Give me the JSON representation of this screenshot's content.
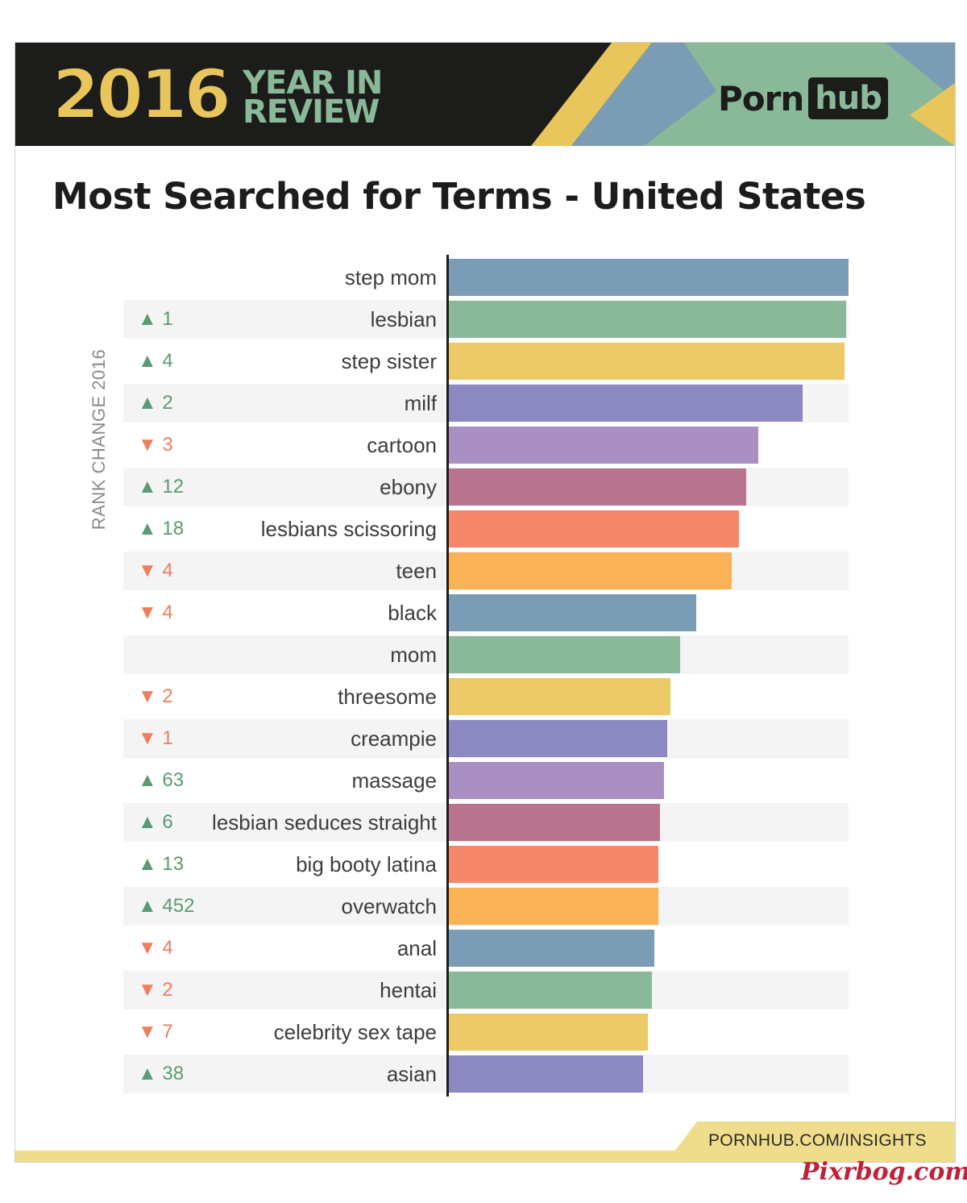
{
  "header": {
    "year": "2016",
    "year_in_review_line1": "YEAR IN",
    "year_in_review_line2": "REVIEW",
    "brand_left": "Porn",
    "brand_right": "hub"
  },
  "footer": {
    "url": "PORNHUB.COM/INSIGHTS"
  },
  "watermark": "Pixrbog.com",
  "colors": {
    "background": "#ffffff",
    "header": "#1c1c1a",
    "accent_yellow": "#e9c65c",
    "accent_green": "#8ab99a",
    "accent_blue": "#7a9db5",
    "up": "#5b9a72",
    "down": "#ef7d5e",
    "footer": "#f0dd8c"
  },
  "chart_data": {
    "type": "bar",
    "orientation": "horizontal",
    "title": "Most Searched for Terms - United States",
    "side_label": "RANK CHANGE 2016",
    "xlabel": "",
    "ylabel": "",
    "xlim": [
      0,
      100
    ],
    "grid": false,
    "legend": "none",
    "categories": [
      "step mom",
      "lesbian",
      "step sister",
      "milf",
      "cartoon",
      "ebony",
      "lesbians scissoring",
      "teen",
      "black",
      "mom",
      "threesome",
      "creampie",
      "massage",
      "lesbian seduces straight",
      "big booty latina",
      "overwatch",
      "anal",
      "hentai",
      "celebrity sex tape",
      "asian"
    ],
    "values": [
      100,
      99.3,
      98.9,
      88.5,
      77.5,
      74.4,
      72.6,
      70.8,
      61.8,
      57.8,
      55.5,
      54.7,
      53.9,
      52.9,
      52.5,
      52.5,
      51.5,
      50.9,
      49.7,
      48.5
    ],
    "rank_change": [
      {
        "dir": "",
        "value": ""
      },
      {
        "dir": "up",
        "value": "1"
      },
      {
        "dir": "up",
        "value": "4"
      },
      {
        "dir": "up",
        "value": "2"
      },
      {
        "dir": "down",
        "value": "3"
      },
      {
        "dir": "up",
        "value": "12"
      },
      {
        "dir": "up",
        "value": "18"
      },
      {
        "dir": "down",
        "value": "4"
      },
      {
        "dir": "down",
        "value": "4"
      },
      {
        "dir": "",
        "value": ""
      },
      {
        "dir": "down",
        "value": "2"
      },
      {
        "dir": "down",
        "value": "1"
      },
      {
        "dir": "up",
        "value": "63"
      },
      {
        "dir": "up",
        "value": "6"
      },
      {
        "dir": "up",
        "value": "13"
      },
      {
        "dir": "up",
        "value": "452"
      },
      {
        "dir": "down",
        "value": "4"
      },
      {
        "dir": "down",
        "value": "2"
      },
      {
        "dir": "down",
        "value": "7"
      },
      {
        "dir": "up",
        "value": "38"
      }
    ],
    "bar_colors": [
      "#7a9db5",
      "#8ab99a",
      "#ecca68",
      "#8b88c2",
      "#a98fc2",
      "#b87590",
      "#f4876a",
      "#fbb256"
    ]
  }
}
